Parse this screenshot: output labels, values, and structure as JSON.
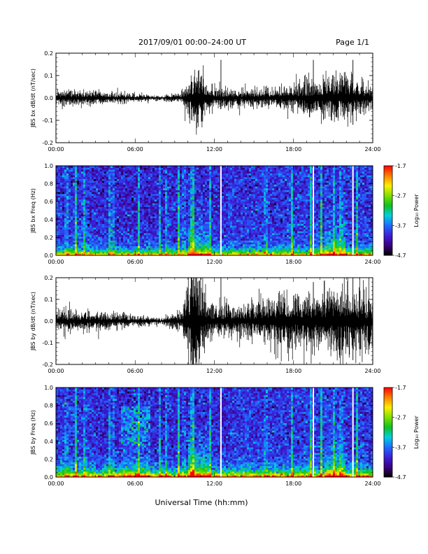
{
  "header": {
    "title": "2017/09/01   00:00–24:00 UT",
    "page": "Page 1/1"
  },
  "x_axis_title": "Universal Time (hh:mm)",
  "x_tick_labels": [
    "00:00",
    "06:00",
    "12:00",
    "18:00",
    "24:00"
  ],
  "colorbar": {
    "label": "Log₁₀ Power",
    "ticks": [
      "-1.7",
      "-2.7",
      "-3.7",
      "-4.7"
    ],
    "range": [
      -4.7,
      -1.7
    ],
    "colormap": [
      "#000000",
      "#3a0080",
      "#3a1fd9",
      "#1e6bff",
      "#00d0e0",
      "#10c020",
      "#7fe000",
      "#ffee00",
      "#ff8000",
      "#ff0000"
    ]
  },
  "chart_data": [
    {
      "type": "line",
      "ylabel": "JBS bx dB/dt (nT/sec)",
      "x_range_hours": [
        0,
        24
      ],
      "ylim": [
        -0.2,
        0.2
      ],
      "y_ticks": [
        "0.2",
        "0.1",
        "0.0",
        "-0.1",
        "-0.2"
      ],
      "series_description_envelope": [
        {
          "hour": 0,
          "amp": 0.02
        },
        {
          "hour": 3,
          "amp": 0.018
        },
        {
          "hour": 6,
          "amp": 0.01
        },
        {
          "hour": 8,
          "amp": 0.005
        },
        {
          "hour": 9.5,
          "amp": 0.015
        },
        {
          "hour": 10.7,
          "amp": 0.09
        },
        {
          "hour": 11.5,
          "amp": 0.03
        },
        {
          "hour": 14,
          "amp": 0.02
        },
        {
          "hour": 17,
          "amp": 0.03
        },
        {
          "hour": 20,
          "amp": 0.05
        },
        {
          "hour": 22,
          "amp": 0.06
        },
        {
          "hour": 24,
          "amp": 0.03
        }
      ],
      "spikes": [
        {
          "hour": 12.5,
          "min": -0.05,
          "max": 0.17
        },
        {
          "hour": 19.5,
          "min": -0.02,
          "max": 0.17
        },
        {
          "hour": 22.5,
          "min": -0.12,
          "max": 0.17
        }
      ]
    },
    {
      "type": "heatmap",
      "ylabel": "JBS bx Freq (Hz)",
      "x_range_hours": [
        0,
        24
      ],
      "ylim": [
        0,
        1.0
      ],
      "y_ticks": [
        "1.0",
        "0.8",
        "0.6",
        "0.4",
        "0.2",
        "0.0"
      ],
      "value_range_log10_power": [
        -4.7,
        -1.7
      ],
      "data_gaps_hours": [
        12.5,
        19.5,
        22.5
      ]
    },
    {
      "type": "line",
      "ylabel": "JBS by dB/dt (nT/sec)",
      "x_range_hours": [
        0,
        24
      ],
      "ylim": [
        -0.2,
        0.2
      ],
      "y_ticks": [
        "0.2",
        "0.1",
        "0.0",
        "-0.1",
        "-0.2"
      ],
      "series_description_envelope": [
        {
          "hour": 0,
          "amp": 0.03
        },
        {
          "hour": 3,
          "amp": 0.025
        },
        {
          "hour": 6,
          "amp": 0.015
        },
        {
          "hour": 8,
          "amp": 0.008
        },
        {
          "hour": 9.5,
          "amp": 0.03
        },
        {
          "hour": 10.5,
          "amp": 0.17
        },
        {
          "hour": 11.5,
          "amp": 0.05
        },
        {
          "hour": 14,
          "amp": 0.04
        },
        {
          "hour": 17,
          "amp": 0.07
        },
        {
          "hour": 20,
          "amp": 0.08
        },
        {
          "hour": 22,
          "amp": 0.1
        },
        {
          "hour": 24,
          "amp": 0.06
        }
      ],
      "spikes": [
        {
          "hour": 12.5,
          "min": -0.05,
          "max": 0.2
        },
        {
          "hour": 19.5,
          "min": -0.04,
          "max": 0.18
        },
        {
          "hour": 22.5,
          "min": -0.18,
          "max": 0.2
        }
      ]
    },
    {
      "type": "heatmap",
      "ylabel": "JBS by Freq (Hz)",
      "x_range_hours": [
        0,
        24
      ],
      "ylim": [
        0,
        1.0
      ],
      "y_ticks": [
        "1.0",
        "0.8",
        "0.6",
        "0.4",
        "0.2",
        "0.0"
      ],
      "value_range_log10_power": [
        -4.7,
        -1.7
      ],
      "data_gaps_hours": [
        12.5,
        19.5,
        22.5
      ]
    }
  ]
}
